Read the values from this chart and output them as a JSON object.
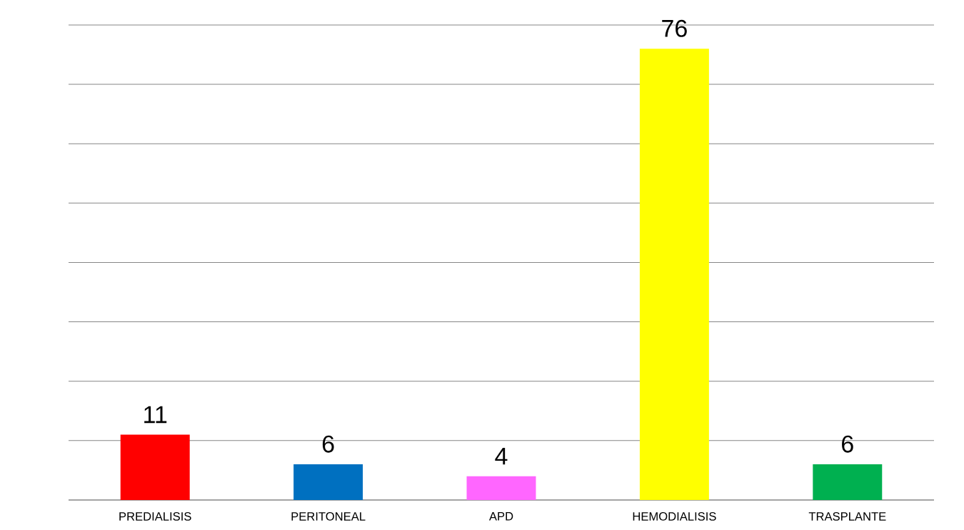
{
  "chart_data": {
    "type": "bar",
    "categories": [
      "PREDIALISIS",
      "PERITONEAL",
      "APD",
      "HEMODIALISIS",
      "TRASPLANTE"
    ],
    "values": [
      11,
      6,
      4,
      76,
      6
    ],
    "colors": [
      "#ff0000",
      "#0070c0",
      "#ff66ff",
      "#ffff00",
      "#00b050"
    ],
    "ylim": [
      0,
      80
    ],
    "yticks": [
      {
        "value": 0,
        "label": null
      },
      {
        "value": 10,
        "label": null
      },
      {
        "value": 20,
        "label": null
      },
      {
        "value": 30,
        "label": null
      },
      {
        "value": 40,
        "label": null
      },
      {
        "value": 50,
        "label": null
      },
      {
        "value": 60,
        "label": null
      },
      {
        "value": 70,
        "label": null
      },
      {
        "value": 80,
        "label": null
      }
    ],
    "grid": "y",
    "data_labels": true,
    "tick_labels": "x"
  }
}
